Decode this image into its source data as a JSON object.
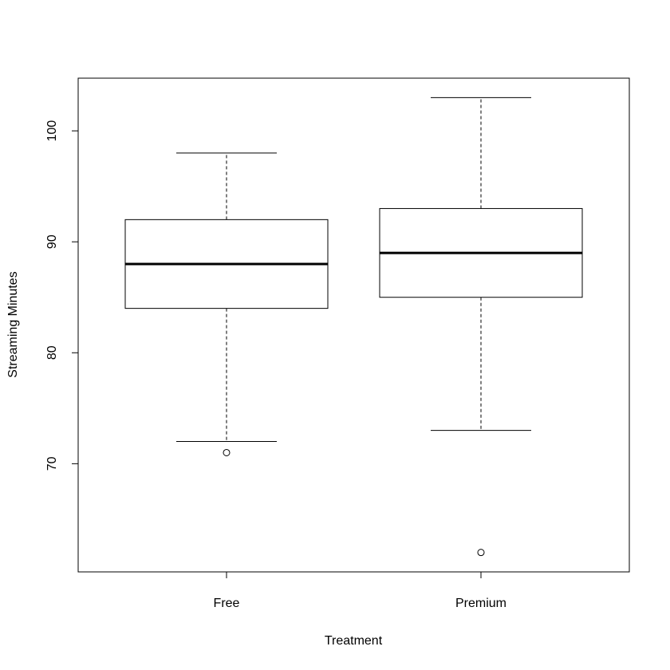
{
  "chart_data": {
    "type": "boxplot",
    "title": "",
    "xlabel": "Treatment",
    "ylabel": "Streaming Minutes",
    "categories": [
      "Free",
      "Premium"
    ],
    "boxes": [
      {
        "category": "Free",
        "whisker_low": 72,
        "q1": 84,
        "median": 88,
        "q3": 92,
        "whisker_high": 98,
        "outliers": [
          71
        ]
      },
      {
        "category": "Premium",
        "whisker_low": 73,
        "q1": 85,
        "median": 89,
        "q3": 93,
        "whisker_high": 103,
        "outliers": [
          62
        ]
      }
    ],
    "y_ticks": [
      70,
      80,
      90,
      100
    ],
    "ylim": [
      60.25,
      104.75
    ],
    "grid": false,
    "legend": "none"
  }
}
